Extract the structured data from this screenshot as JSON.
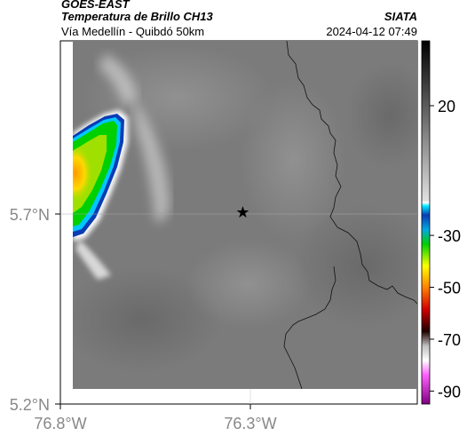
{
  "header": {
    "satellite": "GOES-EAST",
    "product": "Temperatura de Brillo CH13",
    "region": "Vía Medellín - Quibdó 50km",
    "org": "SIATA",
    "datetime": "2024-04-12 07:49"
  },
  "axes": {
    "x_ticks": [
      "76.8°W",
      "76.3°W"
    ],
    "y_ticks": [
      "5.7°N",
      "5.2°N"
    ]
  },
  "colorbar": {
    "ticks": [
      "20",
      "-30",
      "-50",
      "-70",
      "-90"
    ],
    "range": [
      -95,
      45
    ]
  },
  "marker": {
    "symbol": "★",
    "lon": -76.32,
    "lat": 5.7
  },
  "colors": {
    "land": "#7b7b7b",
    "cloud_cold": "#0a3cb4",
    "cloud_core": "#ffa000"
  }
}
